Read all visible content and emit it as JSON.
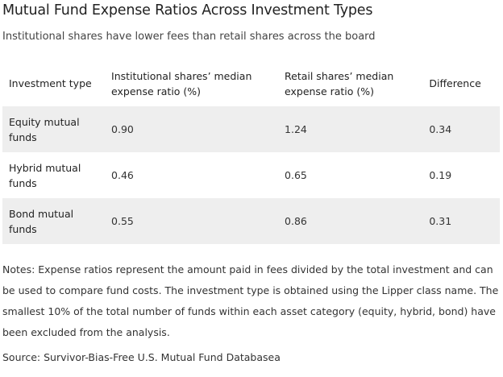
{
  "chart_data": {
    "type": "table",
    "title": "Mutual Fund Expense Ratios Across Investment Types",
    "subtitle": "Institutional shares have lower fees than retail shares across the board",
    "columns": [
      "Investment type",
      "Institutional shares’ median expense ratio (%)",
      "Retail shares’ median expense ratio (%)",
      "Difference"
    ],
    "rows": [
      {
        "type": "Equity mutual funds",
        "institutional": "0.90",
        "retail": "1.24",
        "difference": "0.34"
      },
      {
        "type": "Hybrid mutual funds",
        "institutional": "0.46",
        "retail": "0.65",
        "difference": "0.19"
      },
      {
        "type": "Bond mutual funds",
        "institutional": "0.55",
        "retail": "0.86",
        "difference": "0.31"
      }
    ],
    "row_shading_color": "#eeeeee",
    "notes": "Notes: Expense ratios represent the amount paid in fees divided by the total investment and can be used to compare fund costs. The investment type is obtained using the Lipper class name. The smallest 10% of the total number of funds within each asset category (equity, hybrid, bond) have been excluded from the analysis.",
    "source": "Source: Survivor-Bias-Free U.S. Mutual Fund Databasea"
  }
}
